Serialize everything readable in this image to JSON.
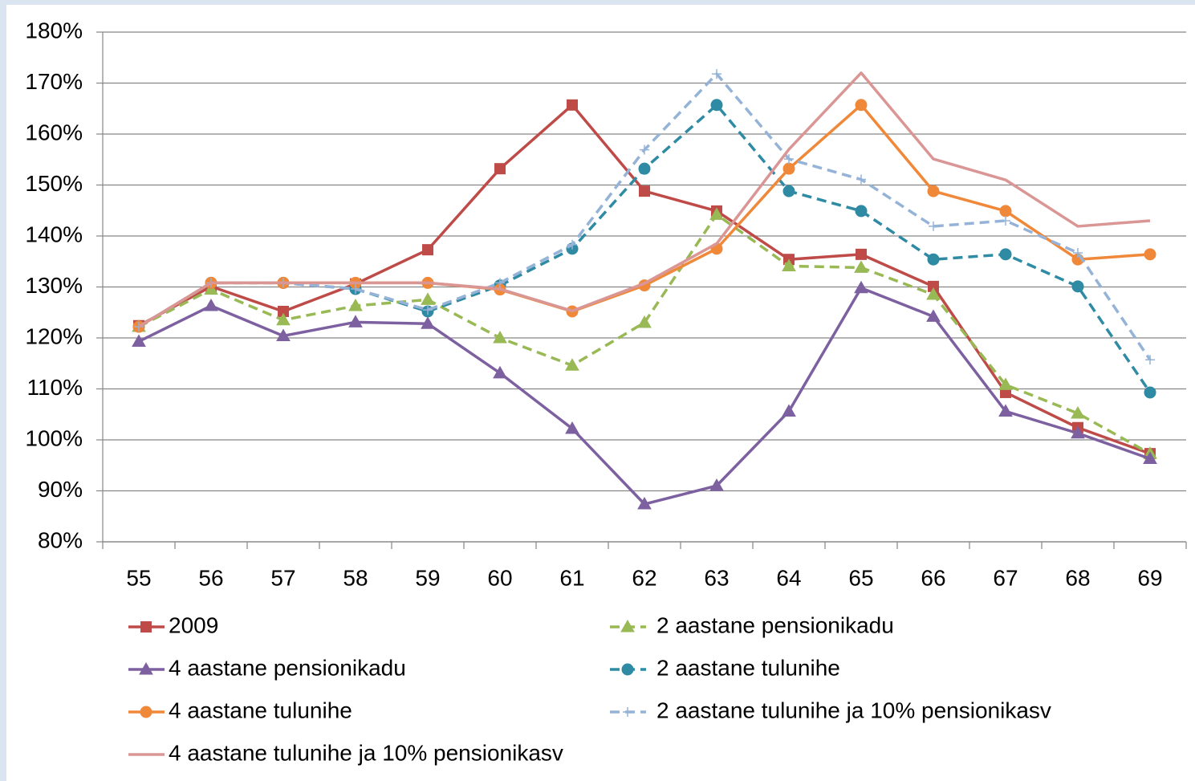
{
  "chart_data": {
    "type": "line",
    "categories": [
      "55",
      "56",
      "57",
      "58",
      "59",
      "60",
      "61",
      "62",
      "63",
      "64",
      "65",
      "66",
      "67",
      "68",
      "69"
    ],
    "ylim": [
      80,
      180
    ],
    "yticks": [
      {
        "value": 80,
        "label": "80%"
      },
      {
        "value": 90,
        "label": "90%"
      },
      {
        "value": 100,
        "label": "100%"
      },
      {
        "value": 110,
        "label": "110%"
      },
      {
        "value": 120,
        "label": "120%"
      },
      {
        "value": 130,
        "label": "130%"
      },
      {
        "value": 140,
        "label": "140%"
      },
      {
        "value": 150,
        "label": "150%"
      },
      {
        "value": 160,
        "label": "160%"
      },
      {
        "value": 170,
        "label": "170%"
      },
      {
        "value": 180,
        "label": "180%"
      }
    ],
    "grid": true,
    "series": [
      {
        "name": "2009",
        "color": "#be4b48",
        "marker": "square",
        "dash": false,
        "values": [
          122.4,
          130.1,
          125.2,
          130.6,
          137.3,
          153.2,
          165.7,
          148.8,
          144.9,
          135.4,
          136.4,
          130.1,
          109.3,
          102.4,
          97.3
        ]
      },
      {
        "name": "2 aastane pensionikadu",
        "color": "#98b954",
        "marker": "triangle",
        "dash": true,
        "values": [
          122.2,
          129.5,
          123.5,
          126.3,
          127.5,
          120.0,
          114.6,
          123.0,
          144.2,
          134.1,
          133.8,
          128.5,
          110.8,
          105.2,
          97.3
        ]
      },
      {
        "name": "4 aastane pensionikadu",
        "color": "#7d60a0",
        "marker": "triangle",
        "dash": false,
        "values": [
          119.3,
          126.3,
          120.4,
          123.1,
          122.8,
          113.1,
          102.2,
          87.4,
          91.0,
          105.6,
          129.8,
          124.2,
          105.6,
          101.3,
          96.3
        ]
      },
      {
        "name": "2 aastane tulunihe",
        "color": "#2f8aa3",
        "marker": "circle",
        "dash": true,
        "values": [
          122.2,
          130.8,
          130.8,
          129.6,
          125.2,
          130.3,
          137.5,
          153.2,
          165.7,
          148.8,
          144.9,
          135.4,
          136.4,
          130.1,
          109.3
        ]
      },
      {
        "name": "4 aastane tulunihe",
        "color": "#f0883a",
        "marker": "circle",
        "dash": false,
        "values": [
          122.2,
          130.8,
          130.8,
          130.8,
          130.8,
          129.5,
          125.2,
          130.3,
          137.5,
          153.2,
          165.7,
          148.8,
          144.9,
          135.4,
          136.4
        ]
      },
      {
        "name": "2 aastane tulunihe ja 10% pensionikasv",
        "color": "#95b3d7",
        "marker": "plus",
        "dash": true,
        "values": [
          122.2,
          130.8,
          130.8,
          129.6,
          125.5,
          130.8,
          138.3,
          156.9,
          171.8,
          155.1,
          151.1,
          141.9,
          143.0,
          136.7,
          115.7
        ]
      },
      {
        "name": "4 aastane tulunihe ja 10% pensionikasv",
        "color": "#d99694",
        "marker": "none",
        "dash": false,
        "values": [
          122.2,
          130.8,
          130.8,
          130.8,
          130.8,
          129.6,
          125.3,
          130.7,
          138.5,
          157.0,
          172.0,
          155.1,
          151.0,
          141.9,
          143.0
        ]
      }
    ]
  }
}
